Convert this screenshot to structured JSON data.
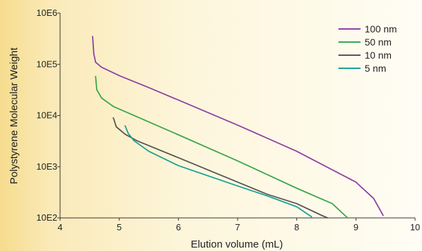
{
  "chart_data": {
    "type": "line",
    "title": "",
    "xlabel": "Elution volume (mL)",
    "ylabel": "Polystyrene Molecular Weight",
    "xlim": [
      4,
      10
    ],
    "ylim": [
      100,
      1000000
    ],
    "y_scale": "log",
    "x_ticks": [
      4,
      5,
      6,
      7,
      8,
      9,
      10
    ],
    "y_ticks": [
      {
        "value": 100,
        "label": "10E2"
      },
      {
        "value": 1000,
        "label": "10E3"
      },
      {
        "value": 10000,
        "label": "10E4"
      },
      {
        "value": 100000,
        "label": "10E5"
      },
      {
        "value": 1000000,
        "label": "10E6"
      }
    ],
    "grid": false,
    "legend_position": "top-right",
    "series": [
      {
        "name": "100 nm",
        "color": "#8e3fa4",
        "points": [
          [
            4.55,
            350000
          ],
          [
            4.57,
            160000
          ],
          [
            4.6,
            110000
          ],
          [
            4.7,
            88000
          ],
          [
            5.0,
            60000
          ],
          [
            5.5,
            35000
          ],
          [
            6.0,
            20000
          ],
          [
            7.0,
            6500
          ],
          [
            8.0,
            2000
          ],
          [
            9.0,
            500
          ],
          [
            9.3,
            240
          ],
          [
            9.46,
            112
          ]
        ]
      },
      {
        "name": "50 nm",
        "color": "#3aa64a",
        "points": [
          [
            4.6,
            58000
          ],
          [
            4.62,
            32000
          ],
          [
            4.7,
            22000
          ],
          [
            4.9,
            15000
          ],
          [
            5.5,
            7500
          ],
          [
            6.0,
            4200
          ],
          [
            7.0,
            1300
          ],
          [
            8.0,
            380
          ],
          [
            8.6,
            190
          ],
          [
            8.86,
            100
          ]
        ]
      },
      {
        "name": "10 nm",
        "color": "#555555",
        "points": [
          [
            4.9,
            9000
          ],
          [
            4.95,
            6000
          ],
          [
            5.1,
            4300
          ],
          [
            5.3,
            3200
          ],
          [
            6.0,
            1500
          ],
          [
            7.0,
            500
          ],
          [
            7.5,
            290
          ],
          [
            8.0,
            190
          ],
          [
            8.4,
            115
          ],
          [
            8.52,
            100
          ]
        ]
      },
      {
        "name": "5 nm",
        "color": "#1aa095",
        "points": [
          [
            5.1,
            6300
          ],
          [
            5.15,
            4500
          ],
          [
            5.25,
            3200
          ],
          [
            5.5,
            2000
          ],
          [
            6.0,
            1050
          ],
          [
            7.0,
            420
          ],
          [
            7.5,
            270
          ],
          [
            8.0,
            165
          ],
          [
            8.25,
            105
          ]
        ]
      }
    ]
  }
}
